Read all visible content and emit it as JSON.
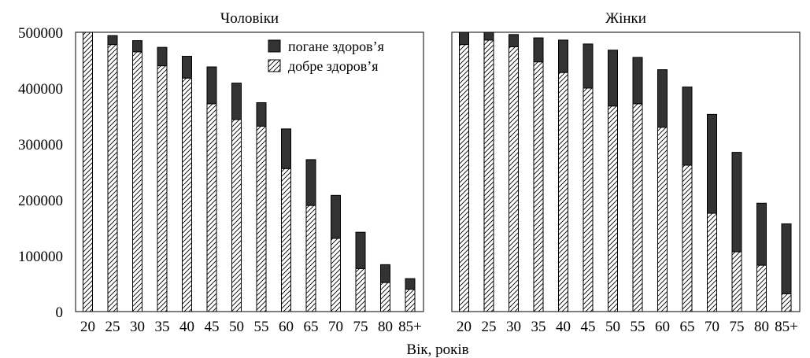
{
  "chart_data": {
    "type": "bar",
    "stacked": true,
    "xlabel": "Вік, років",
    "categories": [
      "20",
      "25",
      "30",
      "35",
      "40",
      "45",
      "50",
      "55",
      "60",
      "65",
      "70",
      "75",
      "80",
      "85+"
    ],
    "ylim": [
      0,
      500000
    ],
    "yticks": [
      0,
      100000,
      200000,
      300000,
      400000,
      500000
    ],
    "ytick_labels": [
      "0",
      "100000",
      "200000",
      "300000",
      "400000",
      "500000"
    ],
    "legend": {
      "placement": "top-right",
      "entries": [
        {
          "label": "погане здоров’я",
          "pattern": "solid-dark"
        },
        {
          "label": "добре здоров’я",
          "pattern": "hatched"
        }
      ]
    },
    "colors": {
      "poor": "#333333",
      "good_hatch": "#000000",
      "background": "#ffffff"
    },
    "panels": [
      {
        "title": "Чоловіки",
        "series": [
          {
            "name": "добре здоров’я",
            "values": [
              500000,
              478000,
              465000,
              440000,
              418000,
              372000,
              344000,
              332000,
              256000,
              190000,
              131000,
              77000,
              52000,
              40000
            ]
          },
          {
            "name": "погане здоров’я",
            "values": [
              0,
              16000,
              20000,
              33000,
              39000,
              66000,
              65000,
              42000,
              71000,
              82000,
              77000,
              65000,
              32000,
              19000
            ]
          }
        ]
      },
      {
        "title": "Жінки",
        "series": [
          {
            "name": "добре здоров’я",
            "values": [
              478000,
              486000,
              474000,
              447000,
              428000,
              400000,
              368000,
              372000,
              330000,
              262000,
              176000,
              107000,
              83000,
              32000
            ]
          },
          {
            "name": "погане здоров’я",
            "values": [
              22000,
              14000,
              22000,
              43000,
              58000,
              79000,
              100000,
              83000,
              103000,
              140000,
              177000,
              178000,
              111000,
              125000
            ]
          }
        ]
      }
    ]
  }
}
